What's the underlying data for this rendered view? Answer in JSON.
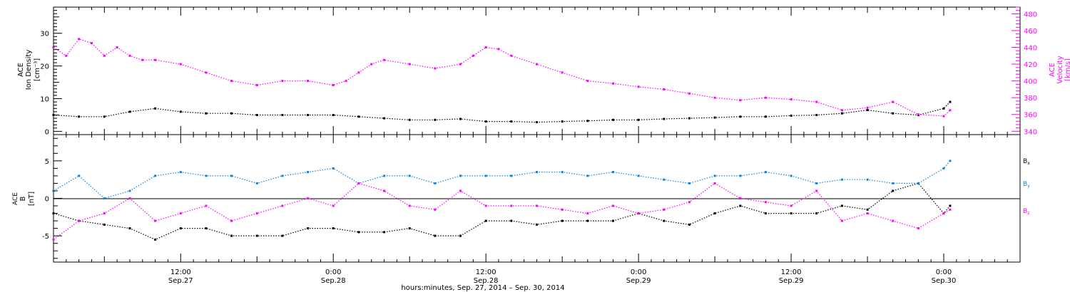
{
  "colors": {
    "black": "#000000",
    "magenta": "#ff00ff",
    "blue": "#0a84e0",
    "axis": "#000000",
    "background": "#ffffff"
  },
  "xaxis": {
    "ticks": [
      {
        "t": 12,
        "time": "12:00",
        "date": "Sep.27"
      },
      {
        "t": 24,
        "time": "0:00",
        "date": "Sep.28"
      },
      {
        "t": 36,
        "time": "12:00",
        "date": "Sep.28"
      },
      {
        "t": 48,
        "time": "0:00",
        "date": "Sep.29"
      },
      {
        "t": 60,
        "time": "12:00",
        "date": "Sep.29"
      },
      {
        "t": 72,
        "time": "0:00",
        "date": "Sep.30"
      }
    ],
    "label": "hours:minutes, Sep. 27, 2014 – Sep. 30, 2014"
  },
  "chart_data": [
    {
      "type": "scatter",
      "title": "",
      "xlim": [
        2,
        78
      ],
      "ylabel_left": [
        "ACE",
        "Ion Density",
        "[cm⁻³]"
      ],
      "ylabel_right": [
        "ACE",
        "Velocity",
        "[km/s]"
      ],
      "left_axis": {
        "ylim": [
          -1,
          38
        ],
        "ticks": [
          0,
          10,
          20,
          30
        ]
      },
      "right_axis": {
        "ylim": [
          336,
          488
        ],
        "ticks": [
          340,
          360,
          380,
          400,
          420,
          440,
          460,
          480
        ]
      },
      "series": [
        {
          "name": "Ion Density",
          "axis": "left",
          "color": "black",
          "x": [
            2,
            4,
            6,
            8,
            10,
            12,
            14,
            16,
            18,
            20,
            22,
            24,
            26,
            28,
            30,
            32,
            34,
            36,
            38,
            40,
            42,
            44,
            46,
            48,
            50,
            52,
            54,
            56,
            58,
            60,
            62,
            64,
            66,
            68,
            70,
            72,
            72.5
          ],
          "y": [
            5,
            4.5,
            4.5,
            6,
            7,
            6,
            5.5,
            5.5,
            5,
            5,
            5,
            5,
            4.5,
            4,
            3.5,
            3.5,
            3.8,
            3,
            3,
            2.8,
            3,
            3.2,
            3.5,
            3.5,
            3.8,
            4,
            4.2,
            4.5,
            4.5,
            4.8,
            5,
            5.5,
            6.5,
            5.5,
            5,
            7,
            9
          ]
        },
        {
          "name": "Velocity",
          "axis": "right",
          "color": "magenta",
          "x": [
            2,
            3,
            4,
            5,
            6,
            7,
            8,
            9,
            10,
            12,
            14,
            16,
            18,
            20,
            22,
            24,
            25,
            26,
            27,
            28,
            30,
            32,
            34,
            35,
            36,
            37,
            38,
            40,
            42,
            44,
            46,
            48,
            50,
            52,
            54,
            56,
            58,
            60,
            62,
            64,
            66,
            68,
            70,
            72,
            72.5
          ],
          "y": [
            440,
            430,
            450,
            445,
            430,
            440,
            430,
            425,
            425,
            420,
            410,
            400,
            395,
            400,
            400,
            395,
            400,
            410,
            420,
            425,
            420,
            415,
            420,
            430,
            440,
            438,
            430,
            420,
            410,
            400,
            397,
            393,
            390,
            385,
            380,
            377,
            380,
            378,
            375,
            365,
            368,
            375,
            360,
            358,
            365
          ]
        }
      ]
    },
    {
      "type": "scatter",
      "title": "",
      "xlim": [
        2,
        78
      ],
      "ylabel_left": [
        "ACE",
        "B",
        "[nT]"
      ],
      "ylim": [
        -8.5,
        8.5
      ],
      "yticks": [
        -5,
        0,
        5
      ],
      "zero_line": true,
      "series": [
        {
          "name": "Bx",
          "legend_main": "B",
          "legend_sub": "x",
          "color": "black",
          "x": [
            2,
            4,
            6,
            8,
            10,
            12,
            14,
            16,
            18,
            20,
            22,
            24,
            26,
            28,
            30,
            32,
            34,
            36,
            38,
            40,
            42,
            44,
            46,
            48,
            50,
            52,
            54,
            56,
            58,
            60,
            62,
            64,
            66,
            68,
            70,
            72,
            72.5
          ],
          "y": [
            -2,
            -3,
            -3.5,
            -4,
            -5.5,
            -4,
            -4,
            -5,
            -5,
            -5,
            -4,
            -4,
            -4.5,
            -4.5,
            -4,
            -5,
            -5,
            -3,
            -3,
            -3.5,
            -3,
            -3,
            -3,
            -2,
            -3,
            -3.5,
            -2,
            -1,
            -2,
            -2,
            -2,
            -1,
            -1.5,
            1,
            2,
            -2,
            -1
          ]
        },
        {
          "name": "By",
          "legend_main": "B",
          "legend_sub": "y",
          "color": "blue",
          "x": [
            2,
            4,
            6,
            8,
            10,
            12,
            14,
            16,
            18,
            20,
            22,
            24,
            26,
            28,
            30,
            32,
            34,
            36,
            38,
            40,
            42,
            44,
            46,
            48,
            50,
            52,
            54,
            56,
            58,
            60,
            62,
            64,
            66,
            68,
            70,
            72,
            72.5
          ],
          "y": [
            1,
            3,
            0,
            1,
            3,
            3.5,
            3,
            3,
            2,
            3,
            3.5,
            4,
            2,
            3,
            3,
            2,
            3,
            3,
            3,
            3.5,
            3.5,
            3,
            3.5,
            3,
            2.5,
            2,
            3,
            3,
            3.5,
            3,
            2,
            2.5,
            2.5,
            2,
            2,
            4,
            5
          ]
        },
        {
          "name": "Bz",
          "legend_main": "B",
          "legend_sub": "z",
          "color": "magenta",
          "x": [
            2,
            4,
            6,
            8,
            10,
            12,
            14,
            16,
            18,
            20,
            22,
            24,
            26,
            28,
            30,
            32,
            34,
            36,
            38,
            40,
            42,
            44,
            46,
            48,
            50,
            52,
            54,
            56,
            58,
            60,
            62,
            64,
            66,
            68,
            70,
            72,
            72.5
          ],
          "y": [
            -5.5,
            -3,
            -2,
            0,
            -3,
            -2,
            -1,
            -3,
            -2,
            -1,
            0,
            -1,
            2,
            1,
            -1,
            -1.5,
            1,
            -1,
            -1,
            -1,
            -1.5,
            -2,
            -1,
            -2,
            -1.5,
            -0.5,
            2,
            0,
            -0.5,
            -1,
            1,
            -3,
            -2,
            -3,
            -4,
            -2,
            -1.5
          ]
        }
      ]
    }
  ]
}
